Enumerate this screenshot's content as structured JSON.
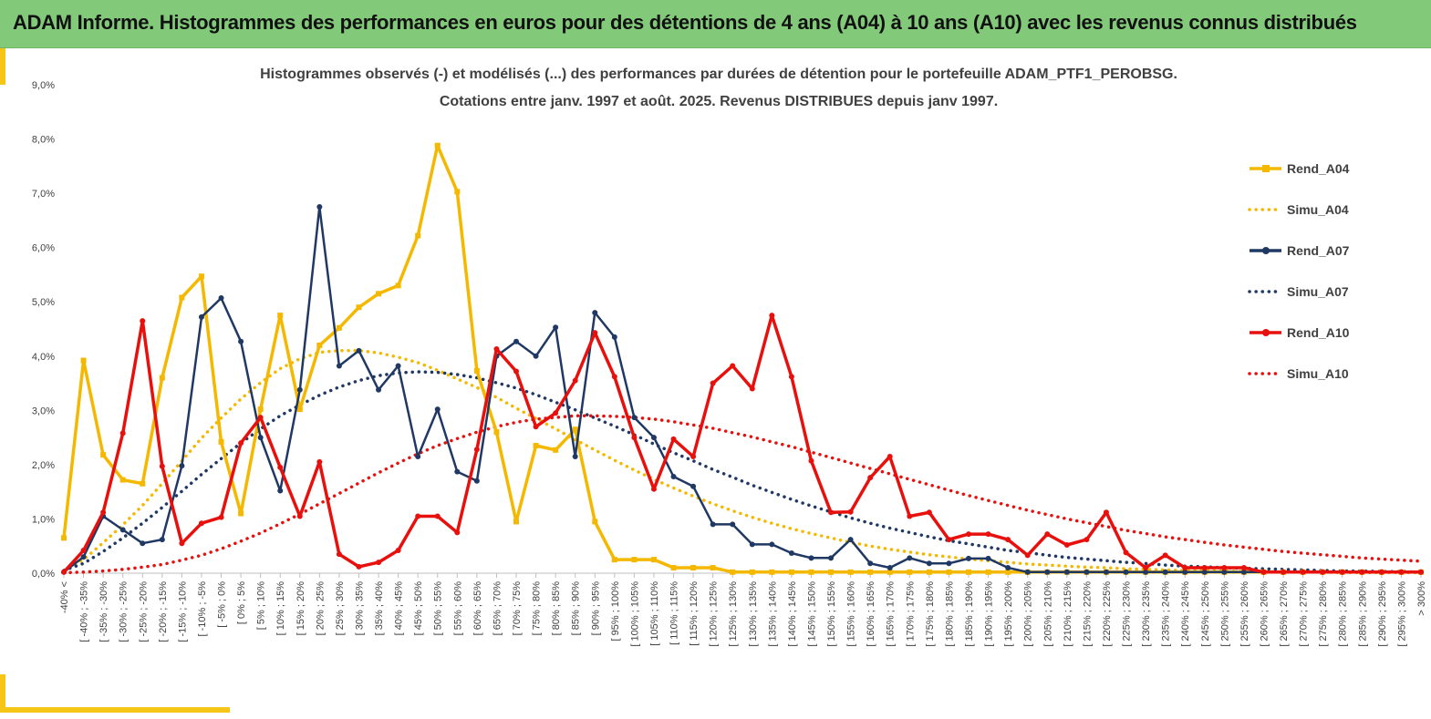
{
  "header": {
    "title": "ADAM Informe. Histogrammes des performances en euros pour des détentions de 4 ans (A04) à 10 ans (A10) avec les revenus connus distribués"
  },
  "colors": {
    "header_bg": "#82c97a",
    "accent": "#f5c518",
    "a04": "#f5b800",
    "a07": "#1f3864",
    "a10": "#e8100c"
  },
  "chart_data": {
    "type": "line",
    "title": "Histogrammes observés (-) et modélisés (...) des performances par durées de détention pour le portefeuille ADAM_PTF1_PEROBSG.",
    "subtitle": "Cotations entre janv. 1997 et août. 2025. Revenus DISTRIBUES depuis janv 1997.",
    "y_ticks": [
      "0,0%",
      "1,0%",
      "2,0%",
      "3,0%",
      "4,0%",
      "5,0%",
      "6,0%",
      "7,0%",
      "8,0%",
      "9,0%"
    ],
    "ylim": [
      0,
      9
    ],
    "grid": false,
    "legend_position": "right",
    "categories": [
      "-40% <",
      "[ -40% ; -35%",
      "[ -35% ; -30%",
      "[ -30% ; -25%",
      "[ -25% ; -20%",
      "[ -20% ; -15%",
      "[ -15% ; -10%",
      "[ -10% ; -5%",
      "[ -5% ; 0%",
      "[ 0% ; 5%",
      "[ 5% ; 10%",
      "[ 10% ; 15%",
      "[ 15% ; 20%",
      "[ 20% ; 25%",
      "[ 25% ; 30%",
      "[ 30% ; 35%",
      "[ 35% ; 40%",
      "[ 40% ; 45%",
      "[ 45% ; 50%",
      "[ 50% ; 55%",
      "[ 55% ; 60%",
      "[ 60% ; 65%",
      "[ 65% ; 70%",
      "[ 70% ; 75%",
      "[ 75% ; 80%",
      "[ 80% ; 85%",
      "[ 85% ; 90%",
      "[ 90% ; 95%",
      "[ 95% ; 100%",
      "[ 100% ; 105%",
      "[ 105% ; 110%",
      "[ 110% ; 115%",
      "[ 115% ; 120%",
      "[ 120% ; 125%",
      "[ 125% ; 130%",
      "[ 130% ; 135%",
      "[ 135% ; 140%",
      "[ 140% ; 145%",
      "[ 145% ; 150%",
      "[ 150% ; 155%",
      "[ 155% ; 160%",
      "[ 160% ; 165%",
      "[ 165% ; 170%",
      "[ 170% ; 175%",
      "[ 175% ; 180%",
      "[ 180% ; 185%",
      "[ 185% ; 190%",
      "[ 190% ; 195%",
      "[ 195% ; 200%",
      "[ 200% ; 205%",
      "[ 205% ; 210%",
      "[ 210% ; 215%",
      "[ 215% ; 220%",
      "[ 220% ; 225%",
      "[ 225% ; 230%",
      "[ 230% ; 235%",
      "[ 235% ; 240%",
      "[ 240% ; 245%",
      "[ 245% ; 250%",
      "[ 250% ; 255%",
      "[ 255% ; 260%",
      "[ 260% ; 265%",
      "[ 265% ; 270%",
      "[ 270% ; 275%",
      "[ 275% ; 280%",
      "[ 280% ; 285%",
      "[ 285% ; 290%",
      "[ 290% ; 295%",
      "[ 295% ; 300%",
      "> 300%"
    ],
    "series": [
      {
        "name": "Rend_A04",
        "style": "solid-marker",
        "color": "#f5b800",
        "values": [
          0.65,
          3.92,
          2.18,
          1.72,
          1.65,
          3.6,
          5.08,
          5.47,
          2.42,
          1.1,
          3.02,
          4.75,
          3.02,
          4.2,
          4.52,
          4.9,
          5.15,
          5.3,
          6.22,
          7.88,
          7.03,
          3.73,
          2.6,
          0.95,
          2.35,
          2.27,
          2.65,
          0.95,
          0.25,
          0.25,
          0.25,
          0.1,
          0.1,
          0.1,
          0.02,
          0.02,
          0.02,
          0.02,
          0.02,
          0.02,
          0.02,
          0.02,
          0.02,
          0.02,
          0.02,
          0.02,
          0.02,
          0.02,
          0.02,
          0.02,
          0.02,
          0.02,
          0.02,
          0.02,
          0.02,
          0.02,
          0.02,
          0.02,
          0.02,
          0.02,
          0.02,
          0.02,
          0.02,
          0.02,
          0.02,
          0.02,
          0.02,
          0.02,
          0.02,
          0.02
        ]
      },
      {
        "name": "Simu_A04",
        "style": "dotted",
        "color": "#f5b800",
        "values": [
          0.05,
          0.25,
          0.56,
          0.89,
          1.25,
          1.65,
          2.07,
          2.49,
          2.86,
          3.21,
          3.51,
          3.77,
          3.95,
          4.07,
          4.1,
          4.1,
          4.06,
          3.98,
          3.88,
          3.74,
          3.58,
          3.42,
          3.24,
          3.04,
          2.85,
          2.66,
          2.46,
          2.27,
          2.08,
          1.9,
          1.73,
          1.57,
          1.42,
          1.28,
          1.15,
          1.03,
          0.92,
          0.82,
          0.73,
          0.65,
          0.57,
          0.5,
          0.44,
          0.39,
          0.34,
          0.3,
          0.26,
          0.23,
          0.2,
          0.17,
          0.15,
          0.13,
          0.11,
          0.1,
          0.08,
          0.07,
          0.06,
          0.05,
          0.05,
          0.04,
          0.03,
          0.03,
          0.02,
          0.02,
          0.02,
          0.01,
          0.01,
          0.01,
          0.01,
          0.01
        ]
      },
      {
        "name": "Rend_A07",
        "style": "solid-marker",
        "color": "#1f3864",
        "values": [
          0.02,
          0.3,
          1.05,
          0.8,
          0.55,
          0.62,
          1.98,
          4.72,
          5.07,
          4.27,
          2.5,
          1.52,
          3.38,
          6.75,
          3.82,
          4.1,
          3.38,
          3.82,
          2.15,
          3.02,
          1.87,
          1.7,
          4.0,
          4.27,
          4.0,
          4.53,
          2.15,
          4.8,
          4.35,
          2.87,
          2.5,
          1.78,
          1.6,
          0.9,
          0.9,
          0.53,
          0.53,
          0.37,
          0.28,
          0.28,
          0.62,
          0.18,
          0.1,
          0.28,
          0.18,
          0.18,
          0.27,
          0.27,
          0.1,
          0.02,
          0.02,
          0.02,
          0.02,
          0.02,
          0.02,
          0.02,
          0.02,
          0.02,
          0.02,
          0.02,
          0.02,
          0.02,
          0.02,
          0.02,
          0.02,
          0.02,
          0.02,
          0.02,
          0.02,
          0.02
        ]
      },
      {
        "name": "Simu_A07",
        "style": "dotted",
        "color": "#1f3864",
        "values": [
          0.05,
          0.18,
          0.4,
          0.65,
          0.92,
          1.21,
          1.51,
          1.82,
          2.11,
          2.4,
          2.66,
          2.9,
          3.1,
          3.28,
          3.43,
          3.55,
          3.64,
          3.69,
          3.71,
          3.7,
          3.66,
          3.6,
          3.51,
          3.41,
          3.29,
          3.15,
          3.01,
          2.86,
          2.71,
          2.55,
          2.38,
          2.22,
          2.07,
          1.91,
          1.77,
          1.62,
          1.49,
          1.36,
          1.24,
          1.13,
          1.02,
          0.92,
          0.83,
          0.75,
          0.67,
          0.6,
          0.54,
          0.48,
          0.42,
          0.38,
          0.33,
          0.29,
          0.26,
          0.23,
          0.2,
          0.18,
          0.15,
          0.13,
          0.12,
          0.1,
          0.09,
          0.08,
          0.07,
          0.06,
          0.05,
          0.04,
          0.04,
          0.03,
          0.03,
          0.02
        ]
      },
      {
        "name": "Rend_A10",
        "style": "solid-marker",
        "color": "#e8100c",
        "values": [
          0.02,
          0.42,
          1.12,
          2.58,
          4.65,
          1.97,
          0.55,
          0.92,
          1.03,
          2.4,
          2.87,
          1.95,
          1.05,
          2.05,
          0.35,
          0.12,
          0.2,
          0.42,
          1.05,
          1.05,
          0.75,
          2.28,
          4.13,
          3.72,
          2.7,
          2.95,
          3.55,
          4.43,
          3.62,
          2.5,
          1.55,
          2.47,
          2.15,
          3.5,
          3.82,
          3.4,
          4.75,
          3.62,
          2.07,
          1.12,
          1.13,
          1.76,
          2.15,
          1.05,
          1.12,
          0.62,
          0.72,
          0.72,
          0.62,
          0.33,
          0.72,
          0.52,
          0.62,
          1.12,
          0.38,
          0.1,
          0.33,
          0.1,
          0.1,
          0.1,
          0.1,
          0.02,
          0.02,
          0.02,
          0.02,
          0.02,
          0.02,
          0.02,
          0.02,
          0.02
        ]
      },
      {
        "name": "Simu_A10",
        "style": "dotted",
        "color": "#e8100c",
        "values": [
          0.01,
          0.02,
          0.04,
          0.07,
          0.11,
          0.16,
          0.24,
          0.33,
          0.45,
          0.59,
          0.74,
          0.91,
          1.09,
          1.28,
          1.47,
          1.66,
          1.85,
          2.03,
          2.2,
          2.35,
          2.48,
          2.6,
          2.7,
          2.78,
          2.84,
          2.87,
          2.9,
          2.9,
          2.89,
          2.87,
          2.84,
          2.79,
          2.73,
          2.67,
          2.59,
          2.51,
          2.42,
          2.33,
          2.23,
          2.13,
          2.03,
          1.93,
          1.83,
          1.73,
          1.63,
          1.53,
          1.43,
          1.34,
          1.25,
          1.16,
          1.08,
          1.0,
          0.93,
          0.86,
          0.79,
          0.73,
          0.67,
          0.62,
          0.57,
          0.52,
          0.48,
          0.44,
          0.4,
          0.37,
          0.34,
          0.31,
          0.28,
          0.26,
          0.24,
          0.22
        ]
      }
    ]
  }
}
